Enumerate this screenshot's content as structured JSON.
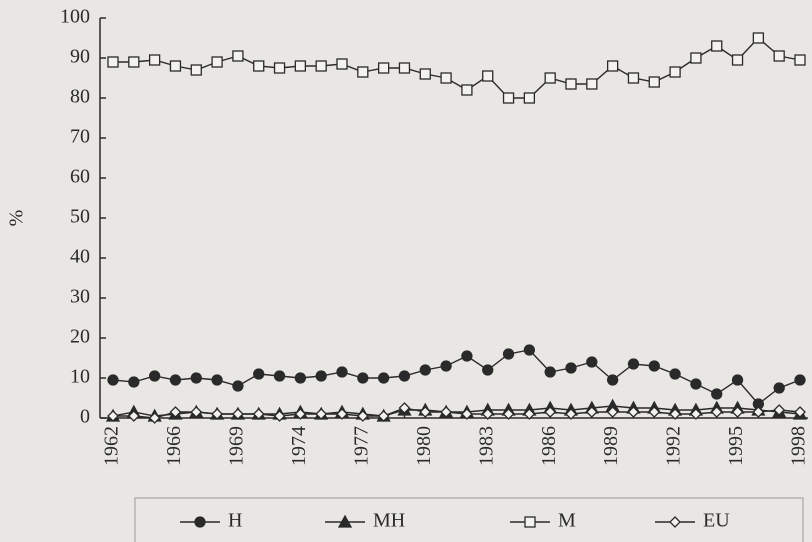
{
  "chart_data": {
    "type": "line",
    "y_label": "%",
    "categories": [
      "1962",
      null,
      null,
      "1966",
      null,
      null,
      "1969",
      null,
      null,
      "1974",
      null,
      null,
      "1977",
      null,
      null,
      "1980",
      null,
      null,
      "1983",
      null,
      null,
      "1986",
      null,
      null,
      "1989",
      null,
      null,
      "1992",
      null,
      null,
      "1995",
      null,
      null,
      "1998"
    ],
    "series": [
      {
        "name": "H",
        "color": "#2a2a2a",
        "marker": "circle",
        "values": [
          9.5,
          9,
          10.5,
          9.5,
          10,
          9.5,
          8,
          11,
          10.5,
          10,
          10.5,
          11.5,
          10,
          10,
          10.5,
          12,
          13,
          15.5,
          12,
          16,
          17,
          11.5,
          12.5,
          14,
          9.5,
          13.5,
          13,
          11,
          8.5,
          6,
          9.5,
          3.5,
          7.5,
          9.5
        ]
      },
      {
        "name": "MH",
        "color": "#2a2a2a",
        "marker": "triangle",
        "values": [
          0.5,
          1.5,
          0.5,
          1,
          1.5,
          1,
          1,
          1,
          1,
          1.5,
          1,
          1.5,
          1,
          0.5,
          2,
          2,
          1.5,
          1.5,
          2,
          2,
          2,
          2.5,
          2,
          2.5,
          3,
          2.5,
          2.5,
          2,
          2,
          2.5,
          2.5,
          2,
          1.5,
          1
        ]
      },
      {
        "name": "M",
        "color": "#2a2a2a",
        "marker": "square",
        "values": [
          89,
          89,
          89.5,
          88,
          87,
          89,
          90.5,
          88,
          87.5,
          88,
          88,
          88.5,
          86.5,
          87.5,
          87.5,
          86,
          85,
          82,
          85.5,
          80,
          80,
          85,
          83.5,
          83.5,
          88,
          85,
          84,
          86.5,
          90,
          93,
          89.5,
          95,
          90.5,
          89.5
        ]
      },
      {
        "name": "EU",
        "color": "#2a2a2a",
        "marker": "diamond",
        "values": [
          0.5,
          0.5,
          0,
          1.5,
          1.5,
          1,
          1,
          1,
          0.5,
          1,
          1,
          1,
          0.5,
          0.5,
          2.5,
          1.5,
          1.5,
          1,
          1,
          1,
          1,
          1.5,
          1,
          1.5,
          1.5,
          1.5,
          1.5,
          1,
          1,
          1.5,
          1.5,
          1.5,
          2,
          1.5
        ]
      }
    ],
    "ylim": [
      0,
      100
    ],
    "yticks": [
      0,
      10,
      20,
      30,
      40,
      50,
      60,
      70,
      80,
      90,
      100
    ],
    "legend": "bottom"
  }
}
